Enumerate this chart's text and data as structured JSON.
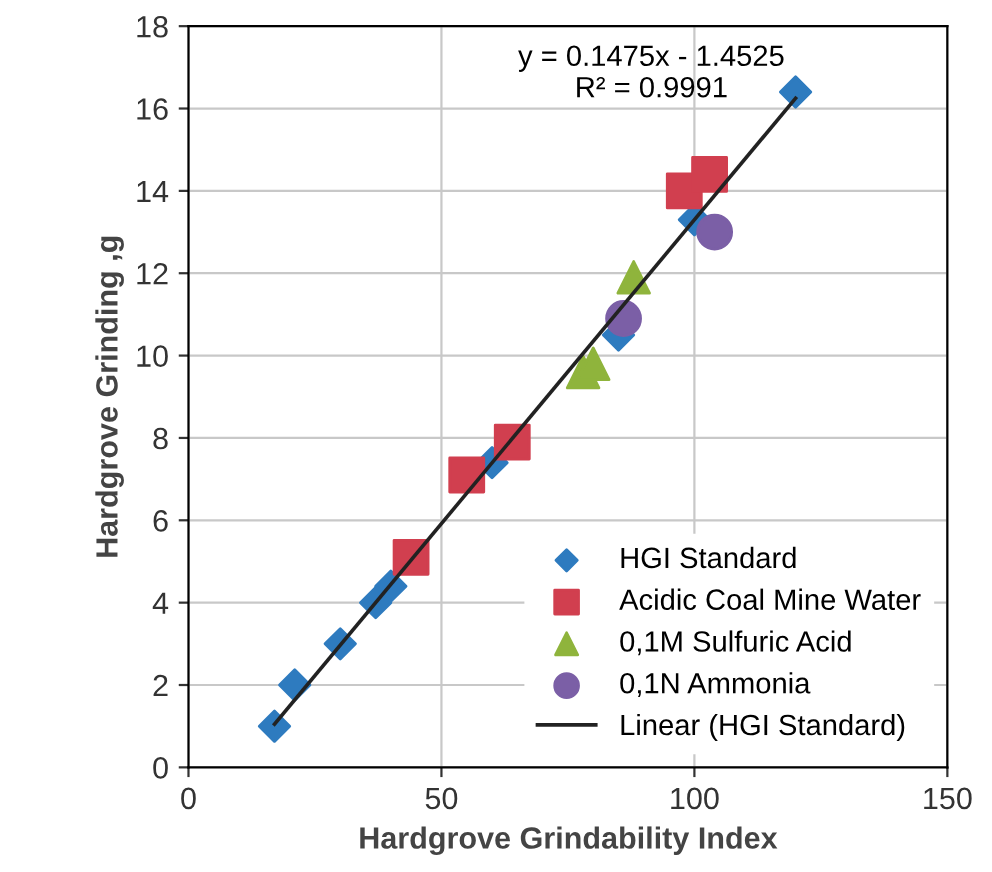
{
  "chart_data": {
    "type": "scatter",
    "xlabel": "Hardgrove Grindability Index",
    "ylabel": "Hardgrove Grinding ,g",
    "xlim": [
      0,
      150
    ],
    "xticks": [
      0,
      50,
      100,
      150
    ],
    "ylim": [
      0,
      18
    ],
    "yticks": [
      0,
      2,
      4,
      6,
      8,
      10,
      12,
      14,
      16,
      18
    ],
    "grid": true,
    "legend": "bottom right",
    "annotations": [
      "y = 0.1475x - 1.4525\nR² = 0.9991"
    ],
    "series": [
      {
        "name": "HGI Standard",
        "color": "#2e7bbf",
        "marker": "diamond",
        "x": [
          17,
          21,
          30,
          37,
          40,
          60,
          85,
          100,
          120
        ],
        "values": [
          1.0,
          2.0,
          3.0,
          4.0,
          4.4,
          7.4,
          10.5,
          13.3,
          16.4
        ]
      },
      {
        "name": "Acidic Coal Mine Water",
        "color": "#d13f4f",
        "marker": "square",
        "x": [
          44,
          55,
          64,
          98,
          103
        ],
        "values": [
          5.1,
          7.1,
          7.9,
          14.0,
          14.4
        ]
      },
      {
        "name": "0,1M Sulfuric Acid",
        "color": "#8fb43c",
        "marker": "triangle",
        "x": [
          78,
          80,
          88
        ],
        "values": [
          9.6,
          9.8,
          11.9
        ]
      },
      {
        "name": "0,1N Ammonia",
        "color": "#7b5fa6",
        "marker": "circle",
        "x": [
          86,
          104
        ],
        "values": [
          10.9,
          13.0
        ]
      },
      {
        "name": "Linear (HGI Standard)",
        "type": "line",
        "color": "#222222",
        "marker": "none",
        "line_style": "solid",
        "x": [
          17,
          120
        ],
        "values": [
          1.05,
          16.25
        ]
      }
    ]
  }
}
